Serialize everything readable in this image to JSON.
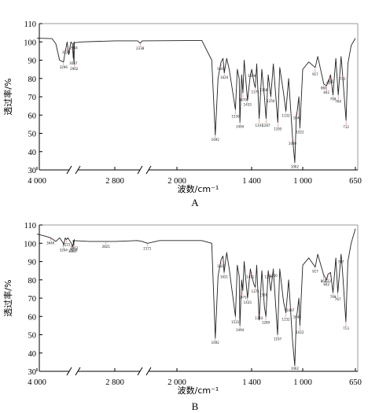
{
  "chart_data": [
    {
      "type": "line",
      "panel_label": "A",
      "xlabel": "波数/cm⁻¹",
      "ylabel": "透过率/%",
      "x_ticks": [
        "4 000",
        "2 800",
        "2 000",
        "1 400",
        "1 000",
        "650"
      ],
      "y_ticks": [
        "30",
        "40",
        "50",
        "60",
        "70",
        "80",
        "90",
        "100",
        "110"
      ],
      "ylim": [
        30,
        110
      ],
      "x_axis": "reversed wavenumber with broken segments",
      "grid": false,
      "series": [
        {
          "points": [
            [
              4000,
              102
            ],
            [
              3600,
              101.8
            ],
            [
              3500,
              99
            ],
            [
              3400,
              90
            ],
            [
              3296,
              89
            ],
            [
              3250,
              95
            ],
            [
              3228,
              97
            ],
            [
              3200,
              100
            ],
            [
              3160,
              93
            ],
            [
              3100,
              100
            ],
            [
              3060,
              99
            ],
            [
              3037,
              91
            ],
            [
              3010,
              100
            ],
            [
              2962,
              88
            ],
            [
              2940,
              97
            ],
            [
              2934,
              99.5
            ],
            [
              2880,
              100
            ],
            [
              2800,
              100.6
            ],
            [
              2500,
              100.6
            ],
            [
              2338,
              99.3
            ],
            [
              2200,
              100.6
            ],
            [
              1800,
              100.8
            ],
            [
              1720,
              90
            ],
            [
              1692,
              49
            ],
            [
              1670,
              80
            ],
            [
              1646,
              89
            ],
            [
              1630,
              91
            ],
            [
              1620,
              83
            ],
            [
              1600,
              91
            ],
            [
              1580,
              85
            ],
            [
              1530,
              63
            ],
            [
              1515,
              85
            ],
            [
              1500,
              80
            ],
            [
              1494,
              56
            ],
            [
              1480,
              82
            ],
            [
              1470,
              72
            ],
            [
              1460,
              90
            ],
            [
              1433,
              68
            ],
            [
              1410,
              82
            ],
            [
              1399,
              85
            ],
            [
              1380,
              77
            ],
            [
              1371,
              75
            ],
            [
              1360,
              88
            ],
            [
              1341,
              58
            ],
            [
              1320,
              85
            ],
            [
              1308,
              76
            ],
            [
              1300,
              70
            ],
            [
              1287,
              58
            ],
            [
              1270,
              82
            ],
            [
              1250,
              70
            ],
            [
              1230,
              88
            ],
            [
              1195,
              56
            ],
            [
              1180,
              86
            ],
            [
              1150,
              72
            ],
            [
              1132,
              62
            ],
            [
              1110,
              80
            ],
            [
              1080,
              48
            ],
            [
              1062,
              34
            ],
            [
              1050,
              60
            ],
            [
              1044,
              62
            ],
            [
              1030,
              70
            ],
            [
              1022,
              53
            ],
            [
              1000,
              85
            ],
            [
              960,
              89
            ],
            [
              917,
              86
            ],
            [
              900,
              92
            ],
            [
              860,
              77
            ],
            [
              842,
              76
            ],
            [
              823,
              80
            ],
            [
              815,
              82
            ],
            [
              799,
              71
            ],
            [
              780,
              91
            ],
            [
              764,
              71
            ],
            [
              745,
              92
            ],
            [
              735,
              82
            ],
            [
              712,
              57
            ],
            [
              700,
              88
            ],
            [
              678,
              98
            ],
            [
              650,
              102
            ]
          ]
        }
      ],
      "peak_labels": [
        {
          "wavenumber": 3296,
          "label": "3296"
        },
        {
          "wavenumber": 3228,
          "label": "3228"
        },
        {
          "wavenumber": 3037,
          "label": "3037"
        },
        {
          "wavenumber": 2934,
          "label": "2934"
        },
        {
          "wavenumber": 2962,
          "label": "2962"
        },
        {
          "wavenumber": 2338,
          "label": "2338"
        },
        {
          "wavenumber": 1692,
          "label": "1692"
        },
        {
          "wavenumber": 1646,
          "label": "1646"
        },
        {
          "wavenumber": 1620,
          "label": "1620"
        },
        {
          "wavenumber": 1530,
          "label": "1530"
        },
        {
          "wavenumber": 1494,
          "label": "1494"
        },
        {
          "wavenumber": 1470,
          "label": "1470"
        },
        {
          "wavenumber": 1433,
          "label": "1433"
        },
        {
          "wavenumber": 1399,
          "label": "1399"
        },
        {
          "wavenumber": 1371,
          "label": "1371"
        },
        {
          "wavenumber": 1341,
          "label": "1341"
        },
        {
          "wavenumber": 1308,
          "label": "1308"
        },
        {
          "wavenumber": 1287,
          "label": "1287"
        },
        {
          "wavenumber": 1250,
          "label": "1250"
        },
        {
          "wavenumber": 1195,
          "label": "1195"
        },
        {
          "wavenumber": 1132,
          "label": "1132"
        },
        {
          "wavenumber": 1080,
          "label": "1080"
        },
        {
          "wavenumber": 1062,
          "label": "1062"
        },
        {
          "wavenumber": 1044,
          "label": "1044"
        },
        {
          "wavenumber": 1022,
          "label": "1022"
        },
        {
          "wavenumber": 917,
          "label": "917"
        },
        {
          "wavenumber": 860,
          "label": "860"
        },
        {
          "wavenumber": 842,
          "label": "842"
        },
        {
          "wavenumber": 823,
          "label": "823"
        },
        {
          "wavenumber": 815,
          "label": "815"
        },
        {
          "wavenumber": 799,
          "label": "799"
        },
        {
          "wavenumber": 764,
          "label": "764"
        },
        {
          "wavenumber": 735,
          "label": "735"
        },
        {
          "wavenumber": 712,
          "label": "712"
        }
      ]
    },
    {
      "type": "line",
      "panel_label": "B",
      "xlabel": "波数/cm⁻¹",
      "ylabel": "透过率/%",
      "x_ticks": [
        "4 000",
        "2 800",
        "2 000",
        "1 400",
        "1 000",
        "650"
      ],
      "y_ticks": [
        "30",
        "40",
        "50",
        "60",
        "70",
        "80",
        "90",
        "100",
        "110"
      ],
      "ylim": [
        30,
        110
      ],
      "x_axis": "reversed wavenumber with broken segments",
      "grid": false,
      "series": [
        {
          "points": [
            [
              4000,
              105
            ],
            [
              3800,
              104
            ],
            [
              3640,
              103
            ],
            [
              3500,
              101
            ],
            [
              3400,
              103
            ],
            [
              3300,
              100
            ],
            [
              3294,
              99
            ],
            [
              3250,
              103
            ],
            [
              3221,
              102
            ],
            [
              3180,
              103
            ],
            [
              3090,
              100
            ],
            [
              3060,
              98
            ],
            [
              3010,
              102
            ],
            [
              2934,
              99
            ],
            [
              2900,
              101.5
            ],
            [
              2860,
              101
            ],
            [
              2800,
              101
            ],
            [
              2500,
              101.5
            ],
            [
              2200,
              101
            ],
            [
              2171,
              100
            ],
            [
              2100,
              101.5
            ],
            [
              1800,
              101.5
            ],
            [
              1720,
              100
            ],
            [
              1692,
              48
            ],
            [
              1670,
              82
            ],
            [
              1646,
              91
            ],
            [
              1630,
              93
            ],
            [
              1621,
              84
            ],
            [
              1600,
              95
            ],
            [
              1580,
              86
            ],
            [
              1530,
              60
            ],
            [
              1515,
              88
            ],
            [
              1500,
              82
            ],
            [
              1494,
              55
            ],
            [
              1480,
              80
            ],
            [
              1471,
              74
            ],
            [
              1460,
              90
            ],
            [
              1433,
              70
            ],
            [
              1410,
              86
            ],
            [
              1399,
              82
            ],
            [
              1380,
              77
            ],
            [
              1371,
              76
            ],
            [
              1360,
              88
            ],
            [
              1341,
              58
            ],
            [
              1320,
              85
            ],
            [
              1308,
              74
            ],
            [
              1300,
              65
            ],
            [
              1288,
              60
            ],
            [
              1270,
              85
            ],
            [
              1250,
              74
            ],
            [
              1230,
              86
            ],
            [
              1197,
              50
            ],
            [
              1180,
              86
            ],
            [
              1150,
              68
            ],
            [
              1132,
              62
            ],
            [
              1110,
              80
            ],
            [
              1080,
              47
            ],
            [
              1062,
              33
            ],
            [
              1050,
              60
            ],
            [
              1044,
              62
            ],
            [
              1030,
              70
            ],
            [
              1022,
              55
            ],
            [
              1000,
              88
            ],
            [
              960,
              92
            ],
            [
              917,
              87
            ],
            [
              900,
              94
            ],
            [
              862,
              83
            ],
            [
              842,
              80
            ],
            [
              833,
              83
            ],
            [
              815,
              84
            ],
            [
              799,
              73
            ],
            [
              780,
              92
            ],
            [
              767,
              73
            ],
            [
              745,
              94
            ],
            [
              735,
              84
            ],
            [
              713,
              57
            ],
            [
              700,
              90
            ],
            [
              678,
              100
            ],
            [
              650,
              108
            ]
          ]
        }
      ],
      "peak_labels": [
        {
          "wavenumber": 3640,
          "label": "3640"
        },
        {
          "wavenumber": 3294,
          "label": "3294"
        },
        {
          "wavenumber": 3221,
          "label": "3221"
        },
        {
          "wavenumber": 3065,
          "label": "3065"
        },
        {
          "wavenumber": 2962,
          "label": "2962"
        },
        {
          "wavenumber": 2934,
          "label": "2934"
        },
        {
          "wavenumber": 2821,
          "label": "2821"
        },
        {
          "wavenumber": 2171,
          "label": "2171"
        },
        {
          "wavenumber": 1692,
          "label": "1692"
        },
        {
          "wavenumber": 1646,
          "label": "1646"
        },
        {
          "wavenumber": 1621,
          "label": "1621"
        },
        {
          "wavenumber": 1531,
          "label": "1531"
        },
        {
          "wavenumber": 1494,
          "label": "1494"
        },
        {
          "wavenumber": 1471,
          "label": "1471"
        },
        {
          "wavenumber": 1433,
          "label": "1433"
        },
        {
          "wavenumber": 1411,
          "label": "1411"
        },
        {
          "wavenumber": 1371,
          "label": "1371"
        },
        {
          "wavenumber": 1344,
          "label": "1344"
        },
        {
          "wavenumber": 1308,
          "label": "1308"
        },
        {
          "wavenumber": 1289,
          "label": "1289"
        },
        {
          "wavenumber": 1268,
          "label": "1268"
        },
        {
          "wavenumber": 1230,
          "label": "1230"
        },
        {
          "wavenumber": 1197,
          "label": "1197"
        },
        {
          "wavenumber": 1132,
          "label": "1132"
        },
        {
          "wavenumber": 1097,
          "label": "1097"
        },
        {
          "wavenumber": 1062,
          "label": "1062"
        },
        {
          "wavenumber": 1044,
          "label": "1044"
        },
        {
          "wavenumber": 1022,
          "label": "1022"
        },
        {
          "wavenumber": 917,
          "label": "917"
        },
        {
          "wavenumber": 862,
          "label": "862"
        },
        {
          "wavenumber": 842,
          "label": "842"
        },
        {
          "wavenumber": 833,
          "label": "833"
        },
        {
          "wavenumber": 799,
          "label": "799"
        },
        {
          "wavenumber": 767,
          "label": "767"
        },
        {
          "wavenumber": 747,
          "label": "747"
        },
        {
          "wavenumber": 713,
          "label": "713"
        }
      ]
    }
  ]
}
